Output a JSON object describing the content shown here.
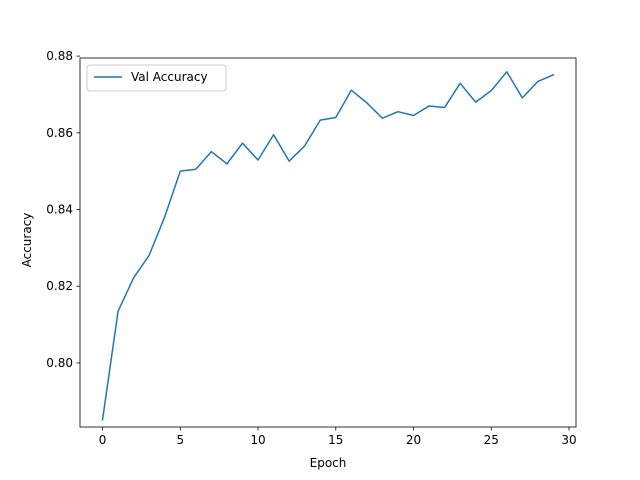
{
  "chart_data": {
    "type": "line",
    "title": "",
    "xlabel": "Epoch",
    "ylabel": "Accuracy",
    "xlim": [
      -1.45,
      30.45
    ],
    "ylim": [
      0.7833,
      0.8795
    ],
    "xticks": [
      0,
      5,
      10,
      15,
      20,
      25,
      30
    ],
    "xtick_labels": [
      "0",
      "5",
      "10",
      "15",
      "20",
      "25",
      "30"
    ],
    "yticks": [
      0.8,
      0.82,
      0.84,
      0.86,
      0.88
    ],
    "ytick_labels": [
      "0.80",
      "0.82",
      "0.84",
      "0.86",
      "0.88"
    ],
    "grid": false,
    "legend_position": "top-left",
    "series": [
      {
        "name": "Val Accuracy",
        "color": "#1f77b4",
        "x": [
          0,
          1,
          2,
          3,
          4,
          5,
          6,
          7,
          8,
          9,
          10,
          11,
          12,
          13,
          14,
          15,
          16,
          17,
          18,
          19,
          20,
          21,
          22,
          23,
          24,
          25,
          26,
          27,
          28,
          29
        ],
        "y": [
          0.7852,
          0.8135,
          0.8222,
          0.8281,
          0.8381,
          0.85,
          0.8505,
          0.8551,
          0.8519,
          0.8573,
          0.8529,
          0.8595,
          0.8526,
          0.8566,
          0.8633,
          0.864,
          0.8711,
          0.8678,
          0.8638,
          0.8655,
          0.8645,
          0.867,
          0.8666,
          0.8729,
          0.868,
          0.871,
          0.8759,
          0.8691,
          0.8734,
          0.8751
        ]
      }
    ]
  }
}
